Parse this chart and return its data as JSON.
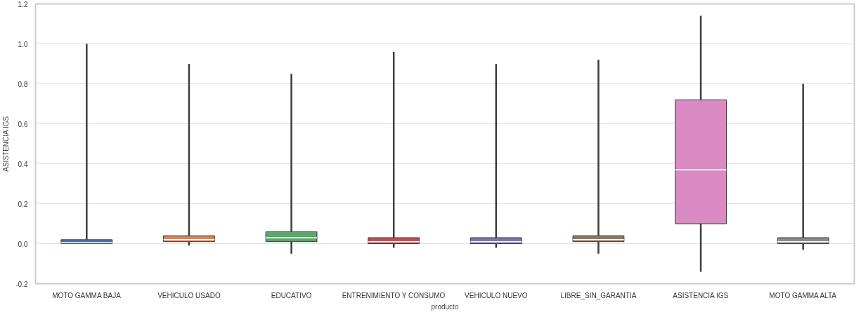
{
  "chart_data": {
    "type": "box",
    "xlabel": "producto",
    "ylabel": "ASISTENCIA IGS",
    "categories": [
      "MOTO GAMMA BAJA",
      "VEHICULO USADO",
      "EDUCATIVO",
      "ENTRENIMIENTO Y CONSUMO",
      "VEHICULO NUEVO",
      "LIBRE_SIN_GARANTIA",
      "ASISTENCIA IGS",
      "MOTO GAMMA ALTA"
    ],
    "colors": [
      "#4c72b0",
      "#dd8452",
      "#55a868",
      "#c44e52",
      "#8172b3",
      "#937860",
      "#da8bc3",
      "#8c8c8c"
    ],
    "boxes": [
      {
        "low": 0.0,
        "q1": 0.0,
        "median": 0.005,
        "q3": 0.02,
        "high": 1.0
      },
      {
        "low": -0.01,
        "q1": 0.01,
        "median": 0.02,
        "q3": 0.04,
        "high": 0.9
      },
      {
        "low": -0.05,
        "q1": 0.01,
        "median": 0.03,
        "q3": 0.06,
        "high": 0.85
      },
      {
        "low": -0.02,
        "q1": 0.0,
        "median": 0.01,
        "q3": 0.03,
        "high": 0.96
      },
      {
        "low": -0.02,
        "q1": 0.0,
        "median": 0.01,
        "q3": 0.03,
        "high": 0.9
      },
      {
        "low": -0.05,
        "q1": 0.01,
        "median": 0.02,
        "q3": 0.04,
        "high": 0.92
      },
      {
        "low": -0.14,
        "q1": 0.1,
        "median": 0.37,
        "q3": 0.72,
        "high": 1.14
      },
      {
        "low": -0.03,
        "q1": 0.0,
        "median": 0.01,
        "q3": 0.03,
        "high": 0.8
      }
    ],
    "ylim": [
      -0.2,
      1.2
    ],
    "yticks": [
      {
        "value": -0.2,
        "label": "-0.2"
      },
      {
        "value": 0,
        "label": "0.0"
      },
      {
        "value": 0.2,
        "label": "0.2"
      },
      {
        "value": 0.4,
        "label": "0.4"
      },
      {
        "value": 0.6,
        "label": "0.6"
      },
      {
        "value": 0.8,
        "label": "0.8"
      },
      {
        "value": 1,
        "label": "1.0"
      },
      {
        "value": 1.2,
        "label": "1.2"
      }
    ],
    "grid": "y"
  }
}
